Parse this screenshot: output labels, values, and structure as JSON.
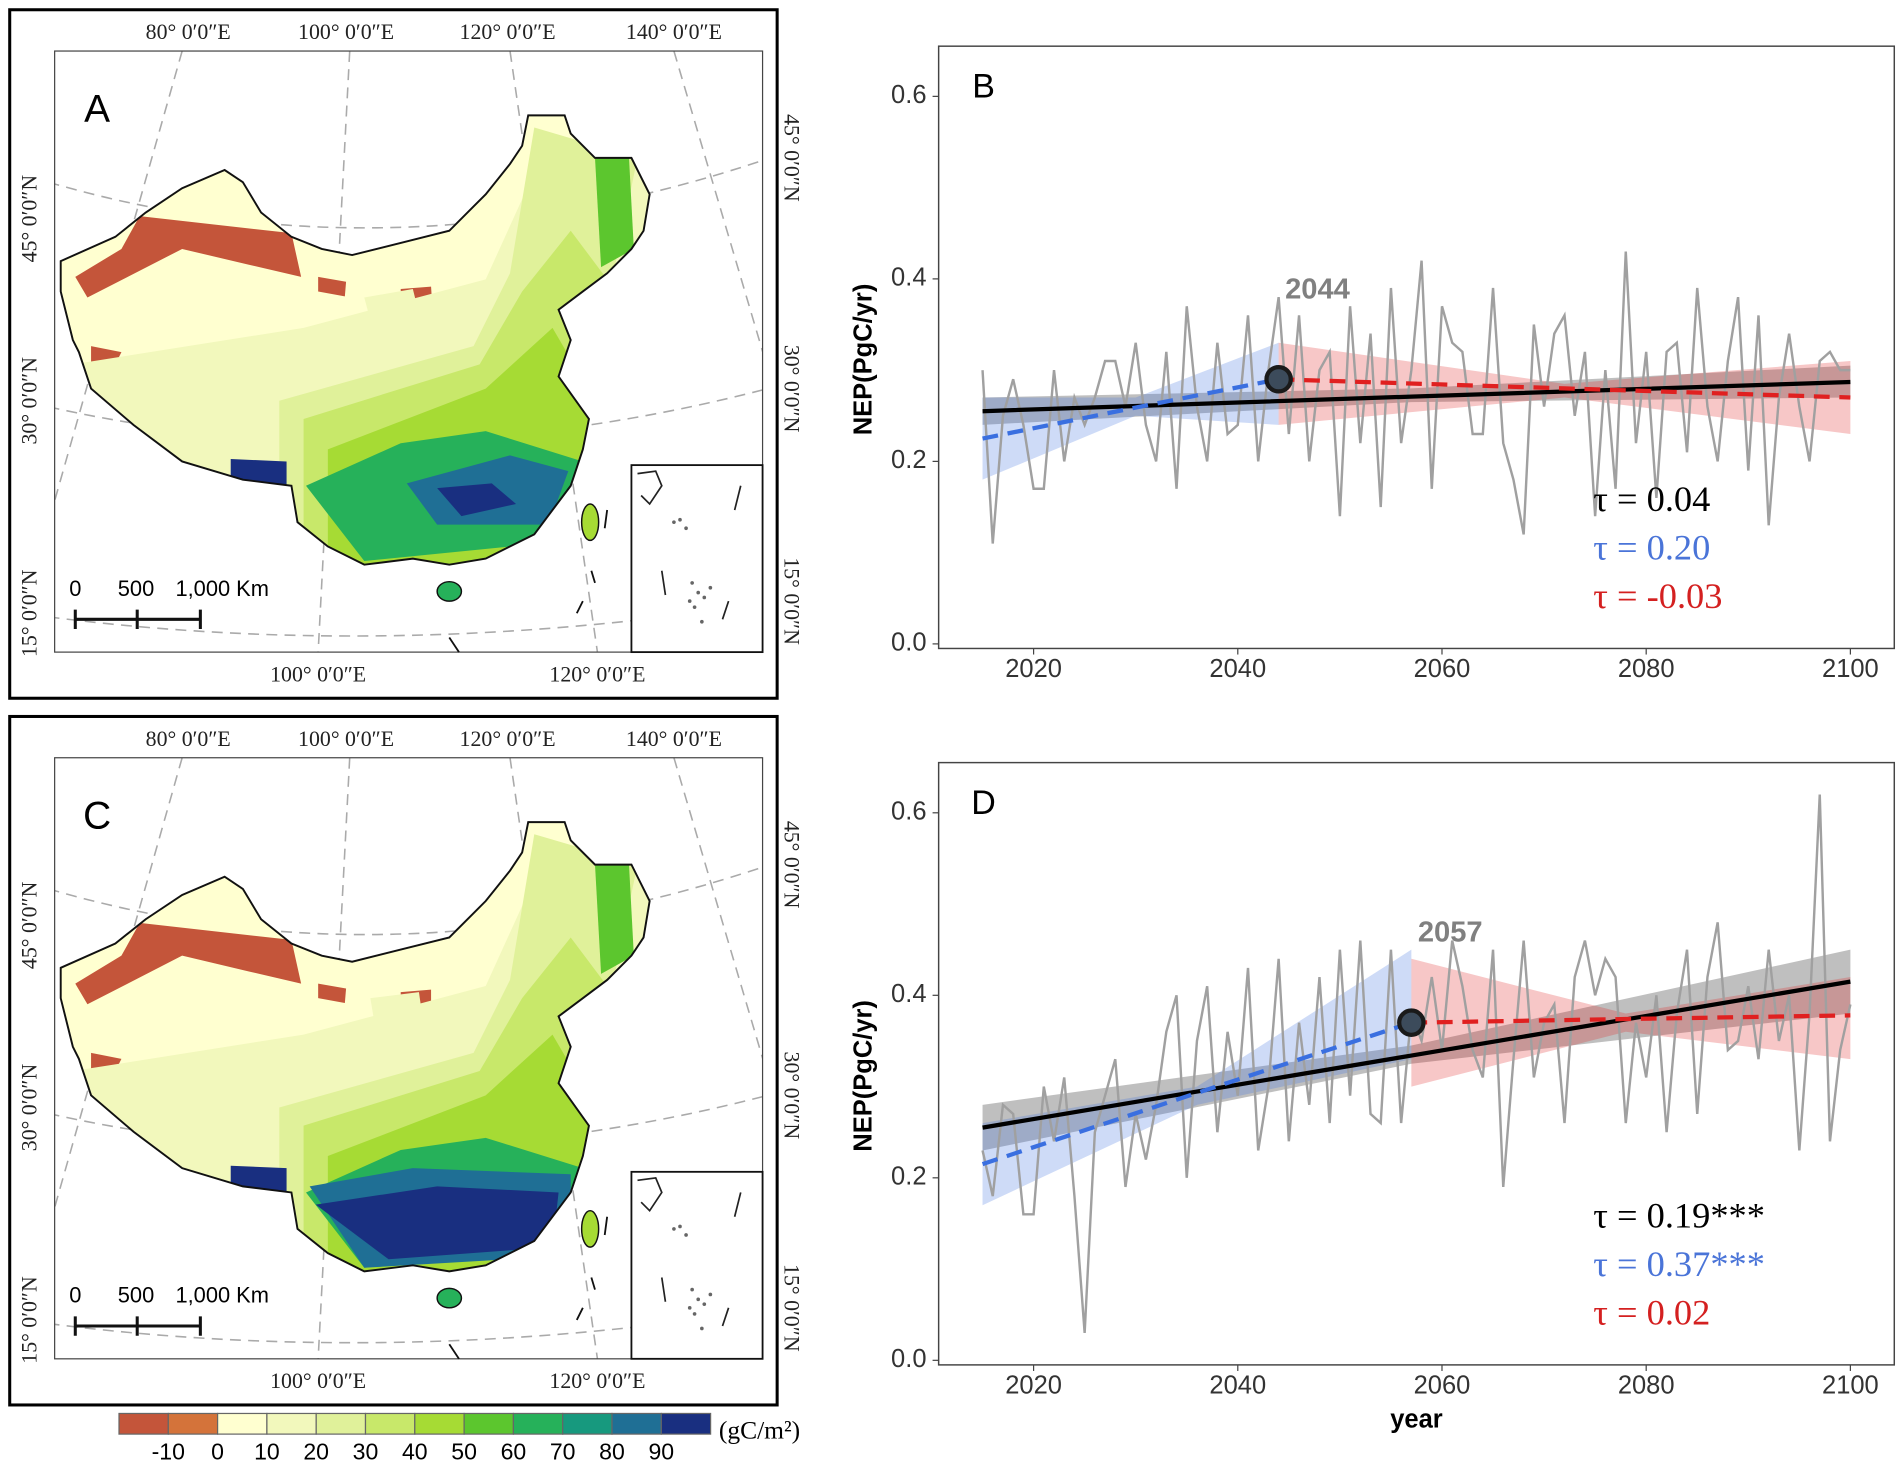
{
  "chart_data": [
    {
      "type": "line",
      "panel_label": "B",
      "y_label": "NEP(PgC/yr)",
      "x": [
        2015,
        2016,
        2017,
        2018,
        2019,
        2020,
        2021,
        2022,
        2023,
        2024,
        2025,
        2026,
        2027,
        2028,
        2029,
        2030,
        2031,
        2032,
        2033,
        2034,
        2035,
        2036,
        2037,
        2038,
        2039,
        2040,
        2041,
        2042,
        2043,
        2044,
        2045,
        2046,
        2047,
        2048,
        2049,
        2050,
        2051,
        2052,
        2053,
        2054,
        2055,
        2056,
        2057,
        2058,
        2059,
        2060,
        2061,
        2062,
        2063,
        2064,
        2065,
        2066,
        2067,
        2068,
        2069,
        2070,
        2071,
        2072,
        2073,
        2074,
        2075,
        2076,
        2077,
        2078,
        2079,
        2080,
        2081,
        2082,
        2083,
        2084,
        2085,
        2086,
        2087,
        2088,
        2089,
        2090,
        2091,
        2092,
        2093,
        2094,
        2095,
        2096,
        2097,
        2098,
        2099,
        2100
      ],
      "series": [
        {
          "color": "#a0a0a0",
          "values": [
            0.3,
            0.11,
            0.25,
            0.29,
            0.24,
            0.17,
            0.17,
            0.3,
            0.2,
            0.27,
            0.24,
            0.27,
            0.31,
            0.31,
            0.26,
            0.33,
            0.24,
            0.2,
            0.32,
            0.17,
            0.37,
            0.26,
            0.2,
            0.33,
            0.23,
            0.24,
            0.36,
            0.2,
            0.3,
            0.38,
            0.23,
            0.36,
            0.2,
            0.3,
            0.32,
            0.14,
            0.37,
            0.22,
            0.34,
            0.15,
            0.39,
            0.22,
            0.3,
            0.42,
            0.17,
            0.37,
            0.33,
            0.32,
            0.23,
            0.23,
            0.39,
            0.22,
            0.18,
            0.12,
            0.35,
            0.26,
            0.34,
            0.36,
            0.25,
            0.32,
            0.14,
            0.3,
            0.17,
            0.43,
            0.22,
            0.32,
            0.16,
            0.32,
            0.33,
            0.21,
            0.39,
            0.26,
            0.2,
            0.31,
            0.38,
            0.19,
            0.36,
            0.13,
            0.27,
            0.34,
            0.26,
            0.2,
            0.31,
            0.32,
            0.3,
            0.3
          ]
        }
      ],
      "trends": [
        {
          "color": "#000000",
          "dashed": false,
          "x": [
            2015,
            2057,
            2100
          ],
          "values": [
            0.255,
            0.271,
            0.287
          ],
          "lower": [
            0.24,
            0.265,
            0.27
          ],
          "upper": [
            0.27,
            0.28,
            0.305
          ]
        },
        {
          "color": "#3a6fe0",
          "dashed": true,
          "x": [
            2015,
            2030,
            2044
          ],
          "values": [
            0.225,
            0.259,
            0.29
          ],
          "lower": [
            0.18,
            0.25,
            0.24
          ],
          "upper": [
            0.27,
            0.27,
            0.33
          ]
        },
        {
          "color": "#e02020",
          "dashed": true,
          "x": [
            2044,
            2072,
            2100
          ],
          "values": [
            0.29,
            0.28,
            0.27
          ],
          "lower": [
            0.24,
            0.27,
            0.23
          ],
          "upper": [
            0.33,
            0.285,
            0.31
          ]
        }
      ],
      "breakpoint": {
        "label": "2044",
        "x": 2044,
        "y": 0.29
      },
      "tau_labels": [
        {
          "text": "τ = 0.04",
          "color": "#000000"
        },
        {
          "text": "τ = 0.20",
          "color": "#4a74d8"
        },
        {
          "text": "τ = -0.03",
          "color": "#d42020"
        }
      ],
      "xlim": [
        2010.7,
        2104.3
      ],
      "ylim": [
        -0.005,
        0.655
      ],
      "xticks": [
        2020,
        2040,
        2060,
        2080,
        2100
      ],
      "yticks": [
        {
          "value": 0,
          "label": "0.0"
        },
        0.2,
        0.4,
        0.6
      ]
    },
    {
      "type": "line",
      "panel_label": "D",
      "y_label": "NEP(PgC/yr)",
      "x_label": "year",
      "x": [
        2015,
        2016,
        2017,
        2018,
        2019,
        2020,
        2021,
        2022,
        2023,
        2024,
        2025,
        2026,
        2027,
        2028,
        2029,
        2030,
        2031,
        2032,
        2033,
        2034,
        2035,
        2036,
        2037,
        2038,
        2039,
        2040,
        2041,
        2042,
        2043,
        2044,
        2045,
        2046,
        2047,
        2048,
        2049,
        2050,
        2051,
        2052,
        2053,
        2054,
        2055,
        2056,
        2057,
        2058,
        2059,
        2060,
        2061,
        2062,
        2063,
        2064,
        2065,
        2066,
        2067,
        2068,
        2069,
        2070,
        2071,
        2072,
        2073,
        2074,
        2075,
        2076,
        2077,
        2078,
        2079,
        2080,
        2081,
        2082,
        2083,
        2084,
        2085,
        2086,
        2087,
        2088,
        2089,
        2090,
        2091,
        2092,
        2093,
        2094,
        2095,
        2096,
        2097,
        2098,
        2099,
        2100
      ],
      "series": [
        {
          "color": "#a0a0a0",
          "values": [
            0.23,
            0.18,
            0.28,
            0.27,
            0.16,
            0.16,
            0.3,
            0.24,
            0.31,
            0.18,
            0.03,
            0.25,
            0.29,
            0.33,
            0.19,
            0.27,
            0.22,
            0.28,
            0.36,
            0.4,
            0.2,
            0.35,
            0.41,
            0.25,
            0.36,
            0.29,
            0.43,
            0.23,
            0.3,
            0.44,
            0.24,
            0.37,
            0.28,
            0.42,
            0.26,
            0.45,
            0.29,
            0.46,
            0.27,
            0.26,
            0.45,
            0.26,
            0.38,
            0.35,
            0.42,
            0.34,
            0.46,
            0.41,
            0.34,
            0.31,
            0.45,
            0.19,
            0.33,
            0.46,
            0.31,
            0.37,
            0.39,
            0.26,
            0.42,
            0.46,
            0.4,
            0.44,
            0.42,
            0.26,
            0.37,
            0.31,
            0.4,
            0.25,
            0.38,
            0.45,
            0.27,
            0.42,
            0.48,
            0.34,
            0.35,
            0.41,
            0.33,
            0.45,
            0.35,
            0.4,
            0.23,
            0.38,
            0.62,
            0.24,
            0.34,
            0.39
          ]
        }
      ],
      "trends": [
        {
          "color": "#000000",
          "dashed": false,
          "x": [
            2015,
            2057,
            2100
          ],
          "values": [
            0.255,
            0.334,
            0.415
          ],
          "lower": [
            0.23,
            0.325,
            0.38
          ],
          "upper": [
            0.28,
            0.345,
            0.45
          ]
        },
        {
          "color": "#3a6fe0",
          "dashed": true,
          "x": [
            2015,
            2036,
            2057
          ],
          "values": [
            0.215,
            0.293,
            0.37
          ],
          "lower": [
            0.17,
            0.28,
            0.33
          ],
          "upper": [
            0.26,
            0.3,
            0.45
          ]
        },
        {
          "color": "#e02020",
          "dashed": true,
          "x": [
            2057,
            2078,
            2100
          ],
          "values": [
            0.37,
            0.374,
            0.378
          ],
          "lower": [
            0.3,
            0.36,
            0.33
          ],
          "upper": [
            0.44,
            0.38,
            0.42
          ]
        }
      ],
      "breakpoint": {
        "label": "2057",
        "x": 2057,
        "y": 0.37
      },
      "tau_labels": [
        {
          "text": "τ = 0.19***",
          "color": "#000000"
        },
        {
          "text": "τ = 0.37***",
          "color": "#4a74d8"
        },
        {
          "text": "τ = 0.02",
          "color": "#d42020"
        }
      ],
      "xlim": [
        2010.7,
        2104.3
      ],
      "ylim": [
        -0.005,
        0.655
      ],
      "xticks": [
        2020,
        2040,
        2060,
        2080,
        2100
      ],
      "yticks": [
        {
          "value": 0,
          "label": "0.0"
        },
        0.2,
        0.4,
        0.6
      ]
    }
  ],
  "maps": {
    "panel_labels": [
      "A",
      "C"
    ],
    "top_labels": [
      "80° 0′0″E",
      "100° 0′0″E",
      "120° 0′0″E",
      "140° 0′0″E"
    ],
    "left_labels": [
      "45° 0′0″N",
      "30° 0′0″N",
      "15° 0′0″N"
    ],
    "right_labels": [
      "45° 0′0″N",
      "30° 0′0″N",
      "15° 0′0″N"
    ],
    "bottom_labels": [
      "100° 0′0″E",
      "120° 0′0″E"
    ],
    "scale_labels": [
      "0",
      "500",
      "1,000 Km"
    ]
  },
  "colorbar": {
    "unit": "(gC/m²)",
    "labels": [
      "-10",
      "0",
      "10",
      "20",
      "30",
      "40",
      "50",
      "60",
      "70",
      "80",
      "90"
    ],
    "colors": [
      "#c4553a",
      "#d4733a",
      "#ffffd0",
      "#f2f8bc",
      "#e0f19a",
      "#c8e86a",
      "#a6db34",
      "#5cc62e",
      "#26b15a",
      "#17997e",
      "#1f6f95",
      "#192f80"
    ]
  }
}
